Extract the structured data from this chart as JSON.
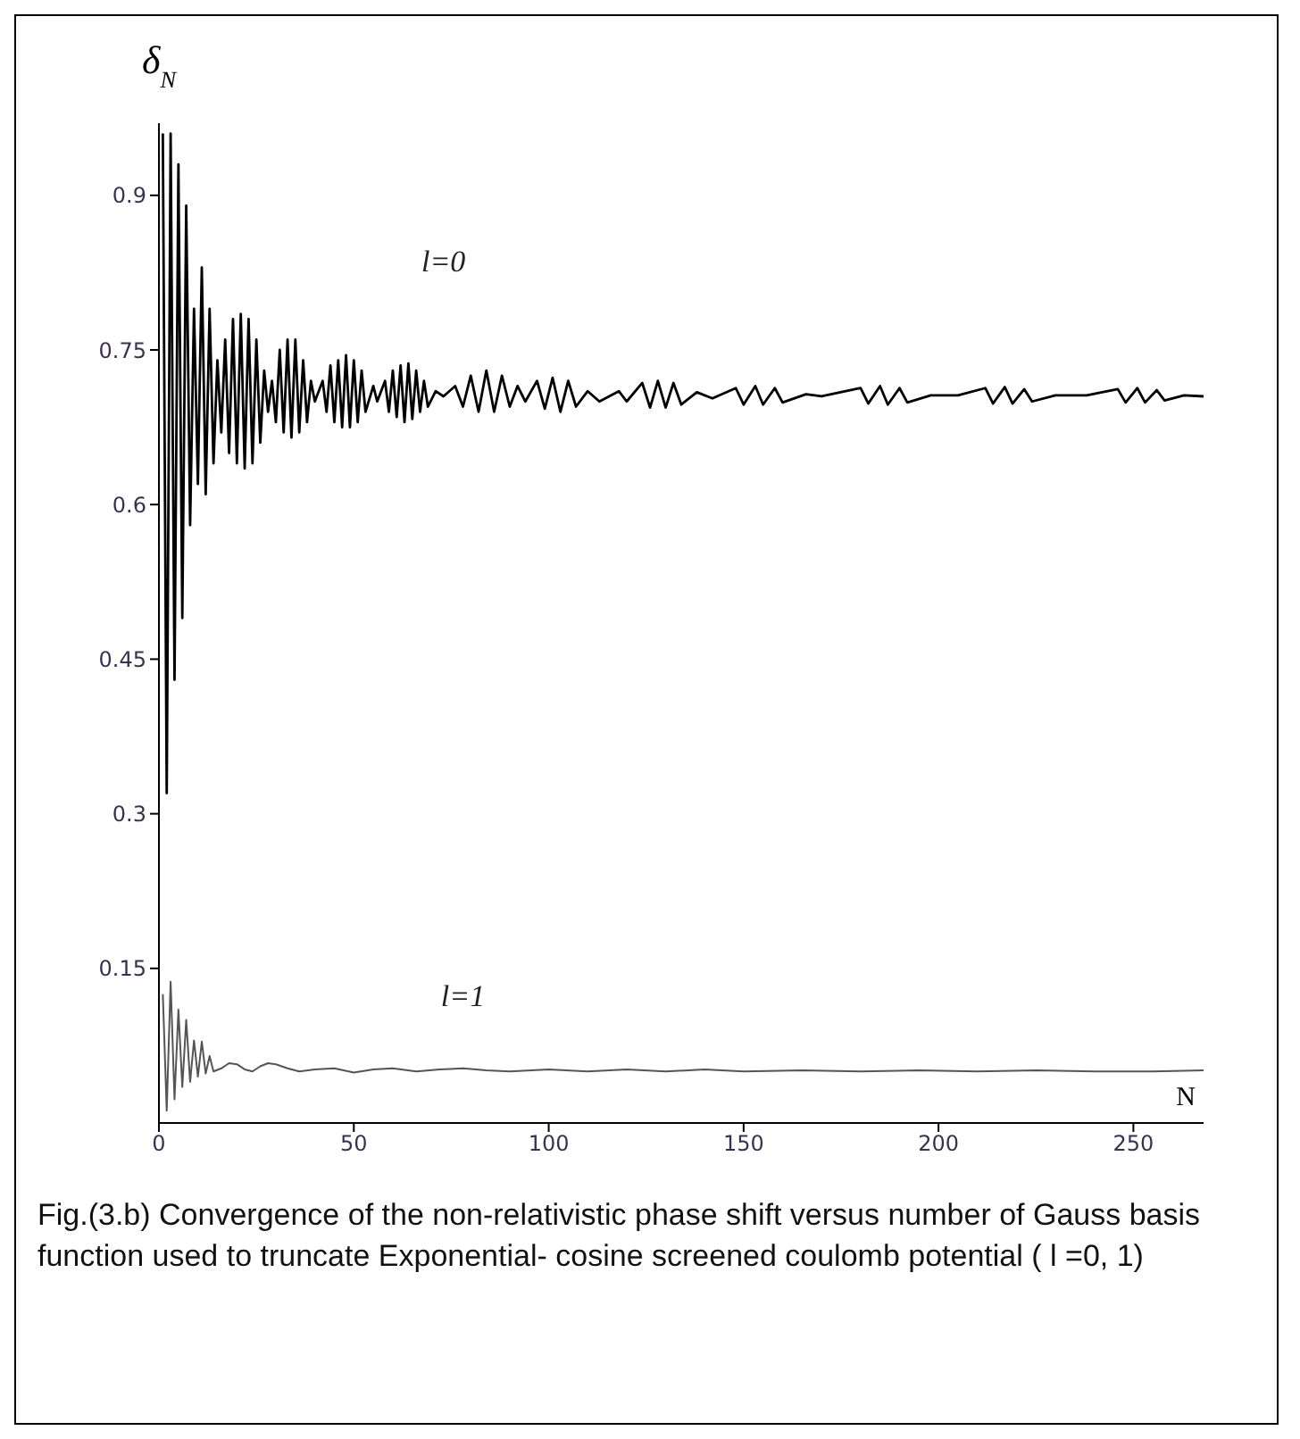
{
  "chart_data": {
    "type": "line",
    "xlabel": "N",
    "ylabel": "δ$_{N}$",
    "xlim": [
      0,
      268
    ],
    "xticks": [
      0,
      50,
      100,
      150,
      200,
      250
    ],
    "ylim": [
      0,
      0.97
    ],
    "yticks": [
      0.15,
      0.3,
      0.45,
      0.6,
      0.75,
      0.9
    ],
    "annotations": [
      "Fig.(3.b) Convergence of the non-relativistic phase shift versus number of Gauss basis function used to truncate Exponential- cosine screened coulomb potential ( l =0, 1)"
    ],
    "series": [
      {
        "name": "l=0",
        "color": "#000000",
        "x": [
          1,
          2,
          3,
          4,
          5,
          6,
          7,
          8,
          9,
          10,
          11,
          12,
          13,
          14,
          15,
          16,
          17,
          18,
          19,
          20,
          21,
          22,
          23,
          24,
          25,
          26,
          27,
          28,
          29,
          30,
          31,
          32,
          33,
          34,
          35,
          36,
          37,
          38,
          39,
          40,
          42,
          43,
          44,
          45,
          46,
          47,
          48,
          49,
          50,
          51,
          52,
          53,
          55,
          56,
          58,
          59,
          60,
          61,
          62,
          63,
          64,
          65,
          66,
          67,
          68,
          69,
          71,
          73,
          76,
          78,
          80,
          82,
          84,
          86,
          88,
          90,
          92,
          94,
          97,
          99,
          101,
          103,
          105,
          107,
          110,
          113,
          118,
          120,
          124,
          126,
          128,
          130,
          132,
          134,
          138,
          142,
          148,
          150,
          153,
          155,
          158,
          160,
          166,
          170,
          180,
          182,
          185,
          187,
          190,
          192,
          198,
          205,
          212,
          214,
          217,
          219,
          222,
          224,
          230,
          238,
          246,
          248,
          251,
          253,
          256,
          258,
          263,
          268
        ],
        "values": [
          0.96,
          0.32,
          0.96,
          0.43,
          0.93,
          0.49,
          0.89,
          0.58,
          0.79,
          0.62,
          0.83,
          0.61,
          0.79,
          0.64,
          0.74,
          0.67,
          0.76,
          0.65,
          0.78,
          0.64,
          0.785,
          0.635,
          0.78,
          0.64,
          0.76,
          0.66,
          0.73,
          0.69,
          0.72,
          0.68,
          0.75,
          0.67,
          0.76,
          0.665,
          0.76,
          0.67,
          0.74,
          0.68,
          0.72,
          0.7,
          0.72,
          0.69,
          0.735,
          0.68,
          0.74,
          0.675,
          0.745,
          0.675,
          0.74,
          0.68,
          0.73,
          0.69,
          0.715,
          0.7,
          0.72,
          0.69,
          0.73,
          0.685,
          0.735,
          0.68,
          0.737,
          0.683,
          0.73,
          0.69,
          0.72,
          0.695,
          0.71,
          0.705,
          0.715,
          0.695,
          0.725,
          0.69,
          0.73,
          0.69,
          0.725,
          0.695,
          0.715,
          0.7,
          0.72,
          0.693,
          0.723,
          0.69,
          0.72,
          0.695,
          0.71,
          0.7,
          0.71,
          0.7,
          0.718,
          0.694,
          0.72,
          0.694,
          0.718,
          0.697,
          0.709,
          0.703,
          0.713,
          0.697,
          0.715,
          0.697,
          0.713,
          0.699,
          0.707,
          0.705,
          0.713,
          0.698,
          0.715,
          0.697,
          0.713,
          0.699,
          0.706,
          0.706,
          0.713,
          0.698,
          0.714,
          0.698,
          0.712,
          0.7,
          0.706,
          0.706,
          0.712,
          0.699,
          0.713,
          0.699,
          0.711,
          0.701,
          0.706,
          0.705
        ]
      },
      {
        "name": "l=1",
        "color": "#555555",
        "x": [
          1,
          2,
          3,
          4,
          5,
          6,
          7,
          8,
          9,
          10,
          11,
          12,
          13,
          14,
          16,
          18,
          20,
          22,
          24,
          26,
          28,
          30,
          33,
          36,
          40,
          45,
          50,
          55,
          60,
          66,
          72,
          78,
          84,
          90,
          100,
          110,
          120,
          130,
          140,
          150,
          165,
          180,
          195,
          210,
          225,
          240,
          255,
          268
        ],
        "values": [
          0.125,
          0.012,
          0.137,
          0.023,
          0.11,
          0.035,
          0.1,
          0.04,
          0.08,
          0.045,
          0.079,
          0.048,
          0.065,
          0.05,
          0.053,
          0.058,
          0.057,
          0.052,
          0.05,
          0.055,
          0.058,
          0.057,
          0.053,
          0.05,
          0.052,
          0.053,
          0.049,
          0.052,
          0.053,
          0.05,
          0.052,
          0.053,
          0.051,
          0.05,
          0.052,
          0.05,
          0.052,
          0.05,
          0.052,
          0.05,
          0.051,
          0.05,
          0.051,
          0.05,
          0.051,
          0.05,
          0.05,
          0.051
        ]
      }
    ]
  }
}
